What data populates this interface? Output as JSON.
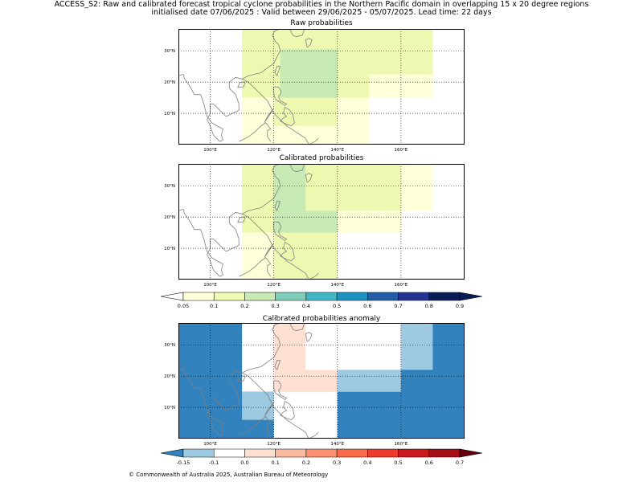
{
  "header": {
    "line1": "ACCESS_S2: Raw and calibrated forecast tropical cyclone probabilities in the Northern Pacific domain in overlapping 15 x 20 degree regions",
    "line2": "initialised date 07/06/2025 :  Valid between 29/06/2025 - 05/07/2025. Lead time: 22 days"
  },
  "footer": "© Commonwealth of Australia 2025, Australian Bureau of Meteorology",
  "chart_data": [
    {
      "type": "heatmap",
      "title": "Raw probabilities",
      "x_range": [
        90,
        180
      ],
      "y_range": [
        0,
        37
      ],
      "x_ticks": [
        "100°E",
        "120°E",
        "140°E",
        "160°E"
      ],
      "y_ticks": [
        "10°N",
        "20°N",
        "30°N"
      ],
      "cells": [
        {
          "lon": [
            110,
            170
          ],
          "lat": [
            15,
            37
          ],
          "value": 0.15,
          "color": "#edf8b1"
        },
        {
          "lon": [
            150,
            170
          ],
          "lat": [
            15,
            22.5
          ],
          "value": 0.07,
          "color": "#ffffd9"
        },
        {
          "lon": [
            110,
            150
          ],
          "lat": [
            0,
            15
          ],
          "value": 0.07,
          "color": "#ffffd9"
        },
        {
          "lon": [
            120,
            140
          ],
          "lat": [
            6,
            15
          ],
          "value": 0.15,
          "color": "#edf8b1"
        },
        {
          "lon": [
            130,
            140
          ],
          "lat": [
            0,
            6
          ],
          "value": 0.07,
          "color": "#ffffd9"
        },
        {
          "lon": [
            122,
            140
          ],
          "lat": [
            15,
            30.5
          ],
          "value": 0.25,
          "color": "#c7e9b4"
        }
      ]
    },
    {
      "type": "heatmap",
      "title": "Calibrated probabilities",
      "x_range": [
        90,
        180
      ],
      "y_range": [
        0,
        37
      ],
      "x_ticks": [
        "100°E",
        "120°E",
        "140°E",
        "160°E"
      ],
      "y_ticks": [
        "10°N",
        "20°N",
        "30°N"
      ],
      "cells": [
        {
          "lon": [
            110,
            160
          ],
          "lat": [
            15,
            37
          ],
          "value": 0.15,
          "color": "#edf8b1"
        },
        {
          "lon": [
            160,
            170
          ],
          "lat": [
            22,
            37
          ],
          "value": 0.07,
          "color": "#ffffd9"
        },
        {
          "lon": [
            140,
            160
          ],
          "lat": [
            15,
            22
          ],
          "value": 0.07,
          "color": "#ffffd9"
        },
        {
          "lon": [
            110,
            140
          ],
          "lat": [
            0,
            15
          ],
          "value": 0.07,
          "color": "#ffffd9"
        },
        {
          "lon": [
            120,
            140
          ],
          "lat": [
            0,
            15
          ],
          "value": 0.15,
          "color": "#edf8b1"
        },
        {
          "lon": [
            120,
            130
          ],
          "lat": [
            22,
            37
          ],
          "value": 0.25,
          "color": "#c7e9b4"
        },
        {
          "lon": [
            120,
            140
          ],
          "lat": [
            15,
            22
          ],
          "value": 0.25,
          "color": "#c7e9b4"
        }
      ]
    },
    {
      "type": "heatmap",
      "title": "Calibrated probabilities anomaly",
      "x_range": [
        90,
        180
      ],
      "y_range": [
        0,
        37
      ],
      "x_ticks": [
        "100°E",
        "120°E",
        "140°E",
        "160°E"
      ],
      "y_ticks": [
        "10°N",
        "20°N",
        "30°N"
      ],
      "background_value": -0.15,
      "background_color": "#3182bd",
      "cells": [
        {
          "lon": [
            110,
            160
          ],
          "lat": [
            15,
            37
          ],
          "value": 0.0,
          "color": "#ffffff"
        },
        {
          "lon": [
            120,
            130
          ],
          "lat": [
            22,
            37
          ],
          "value": 0.05,
          "color": "#fee0d2"
        },
        {
          "lon": [
            120,
            140
          ],
          "lat": [
            15,
            22
          ],
          "value": 0.05,
          "color": "#fee0d2"
        },
        {
          "lon": [
            140,
            160
          ],
          "lat": [
            15,
            22
          ],
          "value": -0.1,
          "color": "#9ecae1"
        },
        {
          "lon": [
            160,
            170
          ],
          "lat": [
            22,
            37
          ],
          "value": -0.1,
          "color": "#9ecae1"
        },
        {
          "lon": [
            110,
            120
          ],
          "lat": [
            6,
            15
          ],
          "value": -0.1,
          "color": "#9ecae1"
        },
        {
          "lon": [
            120,
            140
          ],
          "lat": [
            0,
            15
          ],
          "value": 0.0,
          "color": "#ffffff"
        }
      ]
    }
  ],
  "colorbars": [
    {
      "labels": [
        "0.05",
        "0.1",
        "0.2",
        "0.3",
        "0.4",
        "0.5",
        "0.6",
        "0.7",
        "0.8",
        "0.9"
      ],
      "colors": [
        "#ffffd9",
        "#edf8b1",
        "#c7e9b4",
        "#7fcdbb",
        "#41b6c4",
        "#1d91c0",
        "#225ea8",
        "#253494",
        "#081d58"
      ],
      "under_color": "#ffffff",
      "over_color": "#081d58"
    },
    {
      "labels": [
        "-0.15",
        "-0.1",
        "0.0",
        "0.1",
        "0.2",
        "0.3",
        "0.4",
        "0.5",
        "0.6",
        "0.7"
      ],
      "colors": [
        "#9ecae1",
        "#ffffff",
        "#fee0d2",
        "#fcbba1",
        "#fc9272",
        "#fb6a4a",
        "#ef3b2c",
        "#cb181d",
        "#a50f15"
      ],
      "under_color": "#3182bd",
      "over_color": "#67000d"
    }
  ]
}
